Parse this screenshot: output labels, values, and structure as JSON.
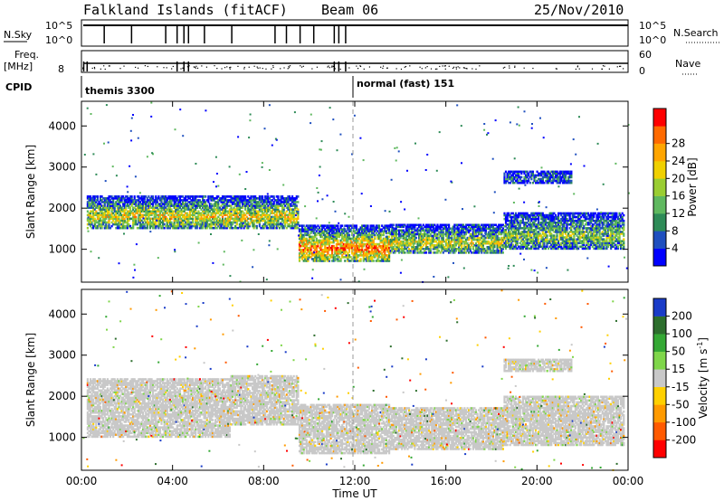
{
  "header": {
    "station": "Falkland Islands (fitACF)",
    "beam": "Beam 06",
    "date": "25/Nov/2010"
  },
  "strip_panels": {
    "nsky_label": "N.Sky",
    "nsky_ticks": [
      "10^5",
      "10^0"
    ],
    "nsearch_label": "N.Search",
    "nsearch_ticks": [
      "10^5",
      "10^0"
    ],
    "freq_label": "Freq.",
    "freq_unit": "[MHz]",
    "freq_tick": "8",
    "nave_label": "Nave",
    "nave_ticks": [
      "60",
      "0"
    ],
    "cpid_label": "CPID",
    "cpid_segments": [
      "themis 3300",
      "normal (fast) 151"
    ]
  },
  "chart_data": [
    {
      "type": "heatmap",
      "name": "power",
      "ylabel": "Slant Range [km]",
      "yticks": [
        1000,
        2000,
        3000,
        4000
      ],
      "ylim": [
        200,
        4600
      ],
      "x": [
        "00:00",
        "04:00",
        "08:00",
        "12:00",
        "16:00",
        "20:00",
        "00:00"
      ],
      "xlim_hours": [
        0,
        24
      ],
      "colorbar": {
        "label": "Power [dB]",
        "ticks": [
          "4",
          "8",
          "12",
          "16",
          "20",
          "24",
          "28"
        ],
        "colors": [
          "#0000ff",
          "#1f4fbf",
          "#2e8b57",
          "#5fb85f",
          "#9acd32",
          "#f0d000",
          "#ffa500",
          "#ff6a00",
          "#ff0000"
        ]
      },
      "bands": [
        {
          "t0": 0.2,
          "t1": 6.5,
          "r0": 1500,
          "r1": 2300,
          "level": 0.6
        },
        {
          "t0": 6.5,
          "t1": 9.5,
          "r0": 1500,
          "r1": 2300,
          "level": 0.6
        },
        {
          "t0": 9.5,
          "t1": 13.5,
          "r0": 700,
          "r1": 1600,
          "level": 0.8
        },
        {
          "t0": 13.5,
          "t1": 18.5,
          "r0": 900,
          "r1": 1600,
          "level": 0.55
        },
        {
          "t0": 18.5,
          "t1": 23.8,
          "r0": 1000,
          "r1": 1900,
          "level": 0.45
        },
        {
          "t0": 18.5,
          "t1": 21.5,
          "r0": 2600,
          "r1": 2900,
          "level": 0.2
        }
      ]
    },
    {
      "type": "heatmap",
      "name": "velocity",
      "ylabel": "Slant Range [km]",
      "yticks": [
        1000,
        2000,
        3000,
        4000
      ],
      "ylim": [
        200,
        4600
      ],
      "x": [
        "00:00",
        "04:00",
        "08:00",
        "12:00",
        "16:00",
        "20:00",
        "00:00"
      ],
      "xlabel": "Time UT",
      "xlim_hours": [
        0,
        24
      ],
      "colorbar": {
        "label": "Velocity [m s",
        "label_sup": "-1",
        "label_close": "]",
        "ticks": [
          "200",
          "100",
          "50",
          "15",
          "-15",
          "-50",
          "-100",
          "-200"
        ],
        "colors": [
          "#1a3cc8",
          "#2d6e2d",
          "#34a834",
          "#7fd64a",
          "#c8c8c8",
          "#ffd000",
          "#ff9a00",
          "#ff5a00",
          "#ff0000"
        ]
      },
      "bands": [
        {
          "t0": 0.2,
          "t1": 6.5,
          "r0": 1000,
          "r1": 2400,
          "level": 0.5
        },
        {
          "t0": 6.5,
          "t1": 9.5,
          "r0": 1300,
          "r1": 2500,
          "level": 0.5
        },
        {
          "t0": 9.5,
          "t1": 13.5,
          "r0": 600,
          "r1": 1800,
          "level": 0.5
        },
        {
          "t0": 13.5,
          "t1": 18.5,
          "r0": 700,
          "r1": 1700,
          "level": 0.5
        },
        {
          "t0": 18.5,
          "t1": 23.8,
          "r0": 800,
          "r1": 2000,
          "level": 0.5
        },
        {
          "t0": 18.5,
          "t1": 21.5,
          "r0": 2600,
          "r1": 2900,
          "level": 0.5
        }
      ]
    }
  ]
}
